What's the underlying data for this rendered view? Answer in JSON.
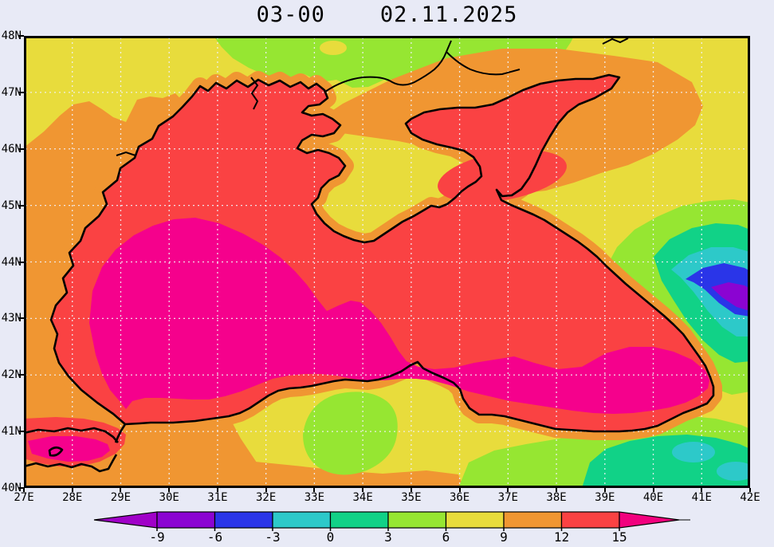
{
  "title": "03-00    02.11.2025",
  "map": {
    "x_axis": {
      "labels": [
        "27E",
        "28E",
        "29E",
        "30E",
        "31E",
        "32E",
        "33E",
        "34E",
        "35E",
        "36E",
        "37E",
        "38E",
        "39E",
        "40E",
        "41E",
        "42E"
      ]
    },
    "y_axis": {
      "labels": [
        "48N",
        "47N",
        "46N",
        "45N",
        "44N",
        "43N",
        "42N",
        "41N",
        "40N"
      ]
    },
    "grid": "dotted-white"
  },
  "colorbar": {
    "labels": [
      "-9",
      "-6",
      "-3",
      "0",
      "3",
      "6",
      "9",
      "12",
      "15"
    ],
    "segment_colors": [
      "#8B04D2",
      "#2A35E8",
      "#2DC9C9",
      "#11D287",
      "#96E632",
      "#E8DC3C",
      "#F09632",
      "#FA4243"
    ],
    "left_arrow_color": "#A001C8",
    "right_arrow_color": "#F2017E"
  },
  "palette": {
    "background": "#E8EAF6",
    "yellow": "#E8DC3C",
    "orange": "#F09632",
    "red": "#FA4243",
    "magenta": "#F5018C",
    "lime": "#96E632",
    "green": "#11D287",
    "cyan": "#2DC9C9",
    "blue": "#2A35E8",
    "purple": "#8B04D2",
    "coast": "#000000",
    "grid": "#F2F2F8"
  },
  "chart_data": {
    "type": "heatmap",
    "subtype": "filled_contour_map",
    "title": "03-00    02.11.2025",
    "forecast_label": "03-00",
    "date": "02.11.2025",
    "region": "Black Sea and Sea of Azov",
    "x": {
      "range_deg_east": [
        27,
        42
      ],
      "ticks": [
        "27E",
        "28E",
        "29E",
        "30E",
        "31E",
        "32E",
        "33E",
        "34E",
        "35E",
        "36E",
        "37E",
        "38E",
        "39E",
        "40E",
        "41E",
        "42E"
      ]
    },
    "y": {
      "range_deg_north": [
        40,
        48
      ],
      "ticks": [
        "40N",
        "41N",
        "42N",
        "43N",
        "44N",
        "45N",
        "46N",
        "47N",
        "48N"
      ]
    },
    "levels": [
      -9,
      -6,
      -3,
      0,
      3,
      6,
      9,
      12,
      15
    ],
    "level_band_colors": {
      "below_-9": "#A001C8",
      "-9_to_-6": "#8B04D2",
      "-6_to_-3": "#2A35E8",
      "-3_to_0": "#2DC9C9",
      "0_to_3": "#11D287",
      "3_to_6": "#96E632",
      "6_to_9": "#E8DC3C",
      "9_to_12": "#F09632",
      "12_to_15": "#FA4243",
      "above_15": "#F5018C"
    },
    "legend_position": "bottom",
    "grid": true,
    "features": [
      {
        "area": "western and southern Black Sea open water (29-41E, 41-45N)",
        "band": "above 15"
      },
      {
        "area": "NW shelf, Odessa bay, coastal rim of the sea",
        "band": "12 to 15"
      },
      {
        "area": "Sea of Azov",
        "band": "9 to 12 with a 12-15 patch in its south and east of Kerch strait"
      },
      {
        "area": "NW land: Moldova / lower Danube (27-31E, 43-46N)",
        "band": "9 to 12"
      },
      {
        "area": "Ukraine steppe north of the sea",
        "band": "6 to 9"
      },
      {
        "area": "far north strip along 47.3-48N (31-38E)",
        "band": "3 to 6"
      },
      {
        "area": "Crimea interior",
        "band": "6 to 9 with 9-12 coastal fringe"
      },
      {
        "area": "Azov to Kuban diagonal swath (33-41E, 45.8-47.7N)",
        "band": "9 to 12"
      },
      {
        "area": "Anatolia (south land)",
        "band": "6 to 9 with 3-6 patches near 33.5E and 38.5E"
      },
      {
        "area": "SE corner: eastern Pontic mountains (38-42E, 40-41N)",
        "band": "0 to 3 with -3-0 spots near 41E"
      },
      {
        "area": "Caucasus mountains NE of coast (39.5-42E, 42.5-45N)",
        "band": "nested 3-6 / 0-3 / -3-0 / -6--3 bands, coldest -9--6 purple core near 41.3E 43.3N"
      },
      {
        "area": "Marmara sea region (SW corner)",
        "band": "above 15 core ringed by 12-15"
      }
    ]
  }
}
